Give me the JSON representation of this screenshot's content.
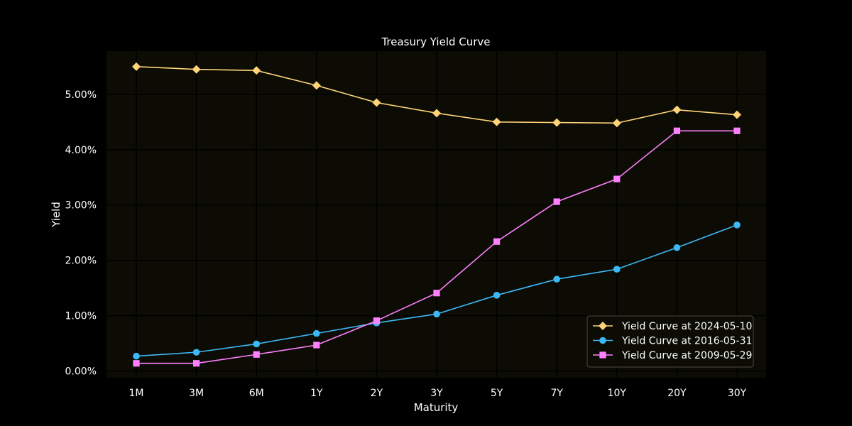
{
  "chart_data": {
    "type": "line",
    "title": "Treasury Yield Curve",
    "xlabel": "Maturity",
    "ylabel": "Yield",
    "categories": [
      "1M",
      "3M",
      "6M",
      "1Y",
      "2Y",
      "3Y",
      "5Y",
      "7Y",
      "10Y",
      "20Y",
      "30Y"
    ],
    "y_ticks": [
      "0.00%",
      "1.00%",
      "2.00%",
      "3.00%",
      "4.00%",
      "5.00%"
    ],
    "ylim": [
      -0.12,
      5.78
    ],
    "grid": true,
    "legend_position": "lower-right",
    "series": [
      {
        "name": "Yield Curve at 2024-05-10",
        "color": "#ffd479",
        "marker": "diamond",
        "values": [
          5.5,
          5.45,
          5.43,
          5.16,
          4.85,
          4.66,
          4.5,
          4.49,
          4.48,
          4.72,
          4.63
        ]
      },
      {
        "name": "Yield Curve at 2016-05-31",
        "color": "#3db8f5",
        "marker": "circle",
        "values": [
          0.27,
          0.34,
          0.49,
          0.68,
          0.87,
          1.03,
          1.37,
          1.66,
          1.84,
          2.23,
          2.64
        ]
      },
      {
        "name": "Yield Curve at 2009-05-29",
        "color": "#ff80ff",
        "marker": "square",
        "values": [
          0.14,
          0.14,
          0.3,
          0.47,
          0.91,
          1.41,
          2.34,
          3.06,
          3.47,
          4.34,
          4.34
        ]
      }
    ]
  }
}
